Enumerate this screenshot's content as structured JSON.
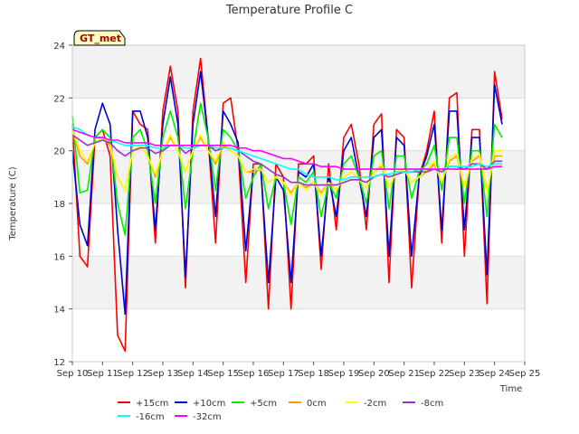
{
  "chart_data": {
    "type": "line",
    "title": "Temperature Profile C",
    "xlabel": "Time",
    "ylabel": "Temperature (C)",
    "badge": "GT_met",
    "ylim": [
      12,
      24
    ],
    "yticks": [
      12,
      14,
      16,
      18,
      20,
      22,
      24
    ],
    "xlim": [
      10,
      25
    ],
    "xticks": [
      10,
      11,
      12,
      13,
      14,
      15,
      16,
      17,
      18,
      19,
      20,
      21,
      22,
      23,
      24,
      25
    ],
    "xtick_labels": [
      "Sep 10",
      "Sep 11",
      "Sep 12",
      "Sep 13",
      "Sep 14",
      "Sep 15",
      "Sep 16",
      "Sep 17",
      "Sep 18",
      "Sep 19",
      "Sep 20",
      "Sep 21",
      "Sep 22",
      "Sep 23",
      "Sep 24",
      "Sep 25"
    ],
    "grid": true,
    "legend_position": "bottom",
    "x": [
      10.0,
      10.25,
      10.5,
      10.75,
      11.0,
      11.25,
      11.5,
      11.75,
      12.0,
      12.25,
      12.5,
      12.75,
      13.0,
      13.25,
      13.5,
      13.75,
      14.0,
      14.25,
      14.5,
      14.75,
      15.0,
      15.25,
      15.5,
      15.75,
      16.0,
      16.25,
      16.5,
      16.75,
      17.0,
      17.25,
      17.5,
      17.75,
      18.0,
      18.25,
      18.5,
      18.75,
      19.0,
      19.25,
      19.5,
      19.75,
      20.0,
      20.25,
      20.5,
      20.75,
      21.0,
      21.25,
      21.5,
      21.75,
      22.0,
      22.25,
      22.5,
      22.75,
      23.0,
      23.25,
      23.5,
      23.75,
      24.0,
      24.25
    ],
    "series": [
      {
        "name": "+15cm",
        "color": "#ff0000",
        "values": [
          21.0,
          16.0,
          15.6,
          20.5,
          20.8,
          19.8,
          13.0,
          12.4,
          21.5,
          21.0,
          20.8,
          16.5,
          21.5,
          23.2,
          21.5,
          14.8,
          21.5,
          23.5,
          20.5,
          16.5,
          21.8,
          22.0,
          20.0,
          15.0,
          19.5,
          19.5,
          14.0,
          19.5,
          19.0,
          14.0,
          19.5,
          19.5,
          19.8,
          15.5,
          19.5,
          17.0,
          20.5,
          21.0,
          19.5,
          17.0,
          21.0,
          21.4,
          15.0,
          20.8,
          20.5,
          14.8,
          19.0,
          20.0,
          21.5,
          16.5,
          22.0,
          22.2,
          16.0,
          20.8,
          20.8,
          14.2,
          23.0,
          21.2
        ]
      },
      {
        "name": "+10cm",
        "color": "#0000cc",
        "values": [
          20.0,
          17.2,
          16.4,
          20.8,
          21.8,
          21.0,
          17.0,
          13.8,
          21.5,
          21.5,
          20.5,
          17.0,
          21.0,
          22.8,
          21.0,
          15.2,
          21.0,
          23.0,
          20.5,
          17.5,
          21.5,
          21.0,
          20.3,
          16.2,
          19.3,
          19.3,
          15.0,
          19.0,
          18.5,
          15.0,
          19.2,
          19.0,
          19.5,
          16.0,
          19.0,
          17.5,
          20.0,
          20.5,
          19.0,
          17.5,
          20.5,
          20.8,
          16.0,
          20.5,
          20.2,
          16.0,
          19.0,
          19.8,
          21.0,
          17.0,
          21.5,
          21.5,
          17.0,
          20.5,
          20.5,
          15.3,
          22.5,
          21.0
        ]
      },
      {
        "name": "+5cm",
        "color": "#00ee00",
        "values": [
          21.3,
          18.4,
          18.5,
          20.5,
          20.8,
          20.5,
          18.0,
          16.8,
          20.5,
          20.8,
          20.0,
          18.0,
          20.5,
          21.5,
          20.5,
          17.8,
          20.0,
          21.8,
          20.5,
          18.5,
          20.8,
          20.5,
          20.0,
          18.2,
          19.0,
          19.5,
          17.8,
          19.0,
          18.8,
          17.2,
          19.0,
          18.8,
          19.2,
          17.5,
          18.8,
          18.2,
          19.5,
          19.8,
          19.0,
          18.0,
          19.8,
          20.0,
          17.8,
          19.8,
          19.8,
          18.2,
          19.2,
          19.5,
          20.2,
          18.5,
          20.5,
          20.5,
          18.0,
          20.0,
          20.0,
          17.5,
          21.0,
          20.5
        ]
      },
      {
        "name": "0cm",
        "color": "#ff9900",
        "values": [
          20.8,
          19.8,
          19.5,
          20.3,
          20.5,
          20.2,
          19.0,
          18.5,
          20.0,
          20.2,
          19.8,
          19.0,
          20.0,
          20.5,
          20.0,
          19.2,
          20.0,
          20.5,
          20.0,
          19.5,
          20.2,
          20.0,
          19.8,
          19.2,
          19.2,
          19.3,
          18.8,
          19.0,
          18.8,
          18.4,
          18.8,
          18.6,
          18.8,
          18.4,
          18.8,
          18.5,
          19.0,
          19.2,
          18.9,
          18.6,
          19.2,
          19.4,
          18.6,
          19.2,
          19.3,
          18.8,
          19.0,
          19.2,
          19.5,
          18.8,
          19.6,
          19.8,
          18.6,
          19.6,
          19.8,
          18.5,
          19.8,
          19.8
        ]
      },
      {
        "name": "-2cm",
        "color": "#ffff00",
        "values": [
          20.8,
          20.0,
          19.6,
          20.3,
          20.5,
          20.3,
          19.0,
          18.5,
          20.0,
          20.2,
          19.8,
          19.1,
          20.0,
          20.6,
          20.0,
          19.2,
          20.0,
          20.6,
          20.0,
          19.6,
          20.3,
          20.0,
          19.8,
          19.2,
          19.3,
          19.3,
          18.8,
          19.0,
          18.8,
          18.3,
          18.8,
          18.5,
          18.8,
          18.3,
          18.8,
          18.5,
          19.0,
          19.2,
          18.9,
          18.6,
          19.2,
          19.5,
          18.6,
          19.2,
          19.3,
          18.8,
          19.0,
          19.3,
          19.6,
          18.8,
          19.7,
          19.9,
          18.6,
          19.7,
          19.9,
          18.4,
          20.0,
          20.0
        ]
      },
      {
        "name": "-8cm",
        "color": "#9933cc",
        "values": [
          20.6,
          20.4,
          20.2,
          20.3,
          20.4,
          20.3,
          20.0,
          19.8,
          20.0,
          20.1,
          20.1,
          19.9,
          20.0,
          20.2,
          20.2,
          19.9,
          20.1,
          20.2,
          20.2,
          20.0,
          20.1,
          20.1,
          20.0,
          19.8,
          19.6,
          19.5,
          19.3,
          19.1,
          19.0,
          18.8,
          18.8,
          18.7,
          18.7,
          18.7,
          18.7,
          18.7,
          18.8,
          18.9,
          18.9,
          18.8,
          19.0,
          19.1,
          19.0,
          19.1,
          19.2,
          19.2,
          19.2,
          19.2,
          19.3,
          19.2,
          19.4,
          19.4,
          19.3,
          19.5,
          19.5,
          19.3,
          19.6,
          19.6
        ]
      },
      {
        "name": "-16cm",
        "color": "#00ffff",
        "values": [
          20.9,
          20.8,
          20.6,
          20.5,
          20.5,
          20.4,
          20.3,
          20.2,
          20.2,
          20.2,
          20.2,
          20.1,
          20.1,
          20.2,
          20.2,
          20.1,
          20.1,
          20.2,
          20.2,
          20.1,
          20.1,
          20.1,
          20.0,
          19.9,
          19.8,
          19.7,
          19.6,
          19.5,
          19.4,
          19.3,
          19.3,
          19.1,
          19.0,
          19.0,
          19.0,
          18.9,
          18.9,
          19.0,
          19.0,
          19.0,
          19.0,
          19.1,
          19.1,
          19.2,
          19.2,
          19.2,
          19.3,
          19.3,
          19.3,
          19.3,
          19.4,
          19.4,
          19.4,
          19.4,
          19.5,
          19.4,
          19.5,
          19.5
        ]
      },
      {
        "name": "-32cm",
        "color": "#ff00ff",
        "values": [
          20.8,
          20.7,
          20.6,
          20.5,
          20.5,
          20.4,
          20.4,
          20.3,
          20.3,
          20.3,
          20.3,
          20.2,
          20.2,
          20.2,
          20.2,
          20.2,
          20.2,
          20.2,
          20.2,
          20.2,
          20.2,
          20.2,
          20.1,
          20.1,
          20.0,
          20.0,
          19.9,
          19.8,
          19.7,
          19.7,
          19.6,
          19.5,
          19.5,
          19.4,
          19.4,
          19.4,
          19.3,
          19.3,
          19.3,
          19.3,
          19.3,
          19.3,
          19.3,
          19.3,
          19.3,
          19.3,
          19.3,
          19.3,
          19.3,
          19.3,
          19.3,
          19.3,
          19.3,
          19.3,
          19.3,
          19.3,
          19.4,
          19.4
        ]
      }
    ]
  }
}
